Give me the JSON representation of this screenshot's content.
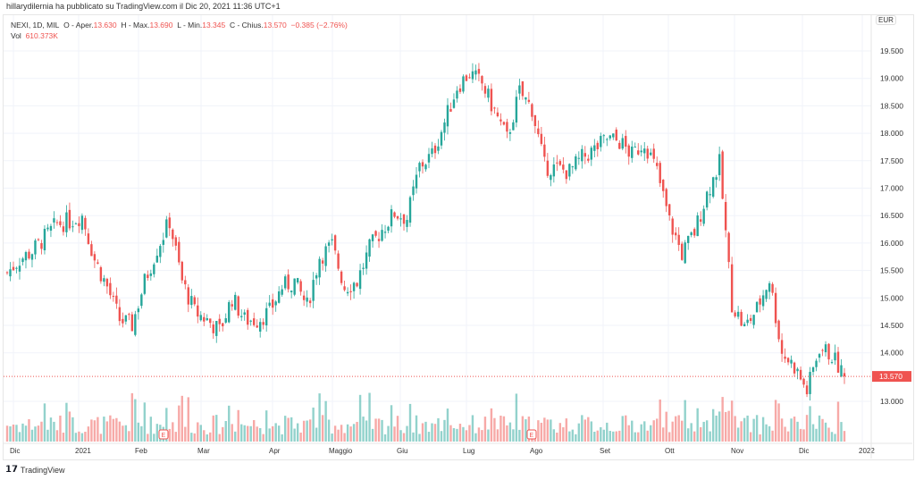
{
  "header": {
    "published": "hillarydilernia ha pubblicato su TradingView.com il Dic 20, 2021 11:36 UTC+1"
  },
  "legend": {
    "symbol": "NEXI, 1D, MIL",
    "o_label": "O - Aper.",
    "o": "13.630",
    "h_label": "H - Max.",
    "h": "13.690",
    "l_label": "L - Min.",
    "l": "13.345",
    "c_label": "C - Chius.",
    "c": "13.570",
    "change": "−0.385 (−2.76%)",
    "vol_label": "Vol",
    "vol": "610.373K"
  },
  "currency": "EUR",
  "footer": {
    "brand": "TradingView"
  },
  "colors": {
    "up": "#26a69a",
    "down": "#ef5350"
  },
  "chart_data": {
    "type": "candlestick",
    "title": "NEXI, 1D, MIL",
    "ylabel": "EUR",
    "ylim": [
      12.7,
      19.8
    ],
    "yticks": [
      "19.500",
      "19.000",
      "18.500",
      "18.000",
      "17.500",
      "17.000",
      "16.500",
      "16.000",
      "15.500",
      "15.000",
      "14.500",
      "14.000",
      "13.000"
    ],
    "xticks": [
      "Dic",
      "2021",
      "Feb",
      "Mar",
      "Apr",
      "Maggio",
      "Giu",
      "Lug",
      "Ago",
      "Set",
      "Ott",
      "Nov",
      "Dic",
      "2022"
    ],
    "last_price": "13.570",
    "period": "2020-12-01 to 2021-12-20 (sampled closes, ~every 4 trading days)",
    "closes": [
      15.46,
      15.7,
      15.85,
      16.1,
      16.35,
      16.4,
      16.5,
      15.7,
      15.2,
      14.6,
      14.5,
      15.3,
      15.9,
      16.4,
      15.3,
      14.75,
      14.6,
      14.4,
      15.0,
      14.6,
      14.6,
      14.75,
      15.2,
      15.3,
      14.85,
      15.75,
      15.95,
      15.2,
      15.3,
      15.9,
      16.25,
      16.55,
      16.45,
      17.4,
      17.6,
      18.2,
      18.85,
      19.1,
      18.9,
      18.4,
      17.9,
      18.75,
      18.45,
      17.4,
      17.35,
      17.3,
      17.55,
      17.7,
      17.9,
      17.85,
      17.6,
      17.85,
      17.3,
      16.4,
      15.8,
      16.2,
      16.9,
      17.45,
      14.9,
      14.45,
      14.8,
      15.35,
      14.0,
      13.75,
      13.3,
      14.1,
      13.95,
      13.57
    ],
    "earnings_markers": [
      "E",
      "E"
    ]
  }
}
